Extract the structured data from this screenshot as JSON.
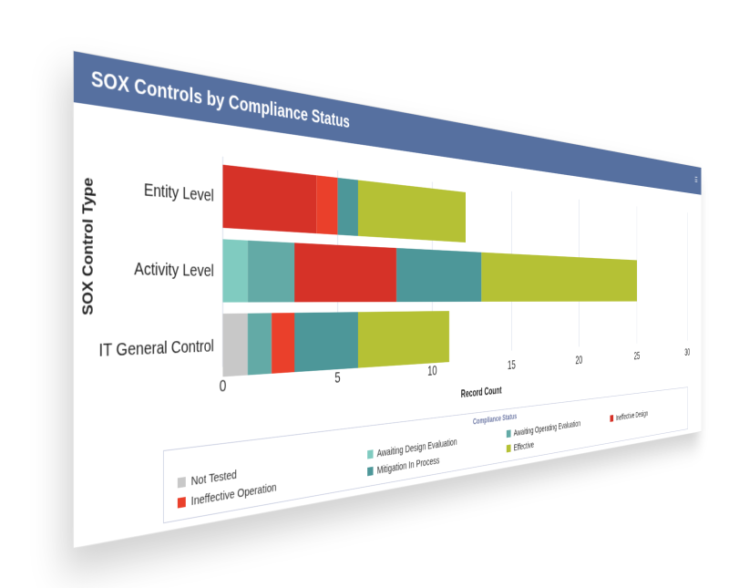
{
  "header": {
    "title": "SOX Controls by Compliance Status",
    "menu_icon": "menu-icon"
  },
  "chart_data": {
    "type": "bar",
    "orientation": "horizontal",
    "stacked": true,
    "title": "SOX Controls by Compliance Status",
    "xlabel": "Record Count",
    "ylabel": "SOX Control Type",
    "xlim": [
      0,
      30
    ],
    "xticks": [
      0,
      5,
      10,
      15,
      20,
      25,
      30
    ],
    "grid": "vertical",
    "categories": [
      "Entity Level",
      "Activity Level",
      "IT General Control"
    ],
    "legend_title": "Compliance Status",
    "legend_position": "bottom",
    "series": [
      {
        "name": "Not Tested",
        "color": "#c8c8c8",
        "values": [
          0,
          0,
          1
        ]
      },
      {
        "name": "Awaiting Design Evaluation",
        "color": "#80cbc0",
        "values": [
          0,
          1,
          0
        ]
      },
      {
        "name": "Awaiting Operating Evaluation",
        "color": "#63aaa6",
        "values": [
          0,
          2,
          1
        ]
      },
      {
        "name": "Ineffective Design",
        "color": "#d63228",
        "values": [
          4,
          5,
          0
        ]
      },
      {
        "name": "Ineffective Operation",
        "color": "#ea402b",
        "values": [
          1,
          0,
          1
        ]
      },
      {
        "name": "Mitigation In Process",
        "color": "#4d9799",
        "values": [
          1,
          5,
          3
        ]
      },
      {
        "name": "Effective",
        "color": "#b5c135",
        "values": [
          6,
          12,
          5
        ]
      }
    ]
  }
}
